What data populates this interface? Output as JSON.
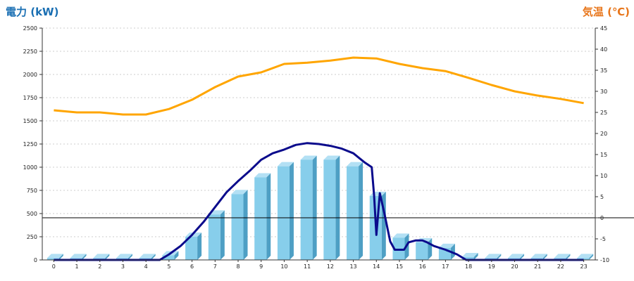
{
  "chart_data": {
    "type": "bar",
    "left_axis_title": "電力 (kW)",
    "right_axis_title": "気温 (℃)",
    "categories": [
      "0",
      "1",
      "2",
      "3",
      "4",
      "5",
      "6",
      "7",
      "8",
      "9",
      "10",
      "11",
      "12",
      "13",
      "14",
      "15",
      "16",
      "17",
      "18",
      "19",
      "20",
      "21",
      "22",
      "23"
    ],
    "left_ticks": [
      "0",
      "250",
      "500",
      "750",
      "1000",
      "1250",
      "1500",
      "1750",
      "2000",
      "2250",
      "2500"
    ],
    "right_ticks": [
      "-10",
      "-5",
      "0",
      "5",
      "10",
      "15",
      "20",
      "25",
      "30",
      "35",
      "40",
      "45"
    ],
    "ylim_left": [
      0,
      2500
    ],
    "ylim_right": [
      -10,
      45
    ],
    "grid": true,
    "bars": {
      "values": [
        20,
        20,
        20,
        20,
        20,
        50,
        250,
        490,
        710,
        890,
        1010,
        1080,
        1080,
        1010,
        690,
        240,
        190,
        130,
        30,
        20,
        20,
        20,
        20,
        20
      ]
    },
    "power_line": {
      "points": [
        [
          0,
          0
        ],
        [
          1,
          0
        ],
        [
          2,
          0
        ],
        [
          3,
          0
        ],
        [
          4,
          0
        ],
        [
          4.6,
          0
        ],
        [
          5,
          60
        ],
        [
          5.5,
          150
        ],
        [
          6,
          270
        ],
        [
          6.5,
          410
        ],
        [
          7,
          570
        ],
        [
          7.5,
          730
        ],
        [
          8,
          850
        ],
        [
          8.5,
          960
        ],
        [
          9,
          1080
        ],
        [
          9.5,
          1150
        ],
        [
          10,
          1190
        ],
        [
          10.5,
          1240
        ],
        [
          11,
          1260
        ],
        [
          11.5,
          1250
        ],
        [
          12,
          1230
        ],
        [
          12.5,
          1200
        ],
        [
          13,
          1150
        ],
        [
          13.5,
          1050
        ],
        [
          13.8,
          1000
        ],
        [
          13.9,
          700
        ],
        [
          14.0,
          270
        ],
        [
          14.15,
          720
        ],
        [
          14.35,
          500
        ],
        [
          14.6,
          200
        ],
        [
          14.8,
          110
        ],
        [
          15.2,
          110
        ],
        [
          15.4,
          190
        ],
        [
          15.7,
          210
        ],
        [
          16.0,
          210
        ],
        [
          16.2,
          190
        ],
        [
          16.5,
          150
        ],
        [
          17,
          110
        ],
        [
          17.5,
          60
        ],
        [
          17.9,
          0
        ],
        [
          18,
          0
        ],
        [
          19,
          0
        ],
        [
          20,
          0
        ],
        [
          21,
          0
        ],
        [
          22,
          0
        ],
        [
          23,
          0
        ]
      ]
    },
    "temperature_line": {
      "values": [
        25.5,
        25,
        25,
        24.5,
        24.5,
        25.8,
        28,
        31,
        33.5,
        34.5,
        36.5,
        36.8,
        37.3,
        38,
        37.8,
        36.5,
        35.5,
        34.8,
        33.2,
        31.5,
        30,
        29,
        28.2,
        27.2
      ]
    },
    "reference_line_value_right": 0,
    "colors": {
      "bar_face": "#87ceeb",
      "bar_side": "#4e9fc4",
      "bar_top": "#b3e0f4",
      "power_line": "#0b0b8c",
      "temperature_line": "#ffa500",
      "left_title": "#1a6fb3",
      "right_title": "#e8761b"
    }
  }
}
